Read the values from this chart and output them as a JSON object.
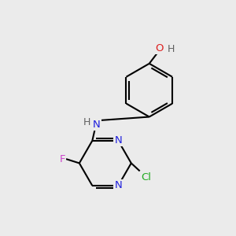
{
  "background_color": "#ebebeb",
  "bond_color": "#000000",
  "bond_width": 1.5,
  "atom_colors": {
    "C": "#000000",
    "N": "#2020dd",
    "O": "#dd2020",
    "F": "#cc44cc",
    "Cl": "#22aa22",
    "H": "#606060"
  },
  "font_size": 9.5,
  "figsize": [
    3.0,
    3.0
  ],
  "dpi": 100
}
